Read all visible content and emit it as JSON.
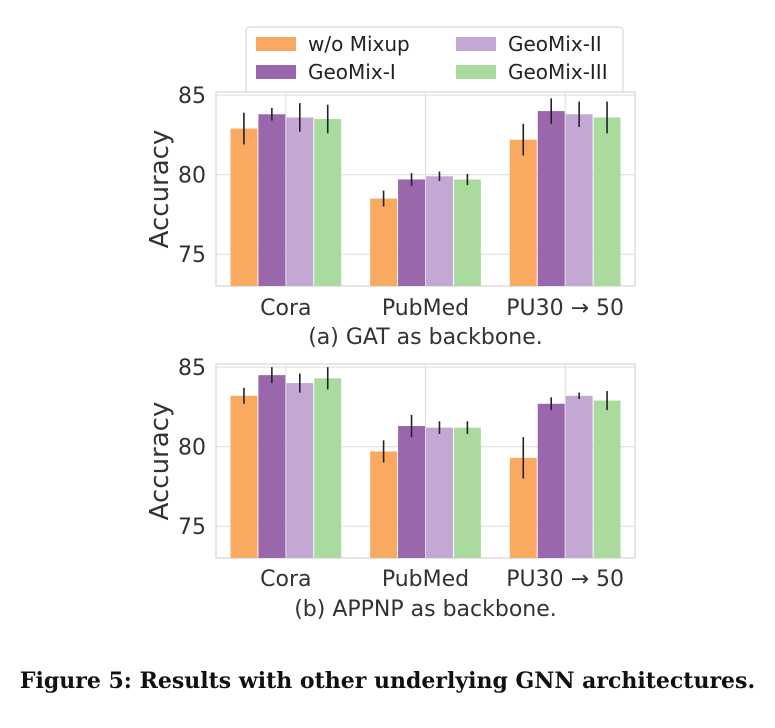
{
  "legend": {
    "position": "top-center",
    "entries": [
      {
        "label": "w/o Mixup",
        "color": "#FAA961"
      },
      {
        "label": "GeoMix-I",
        "color": "#9A66AC"
      },
      {
        "label": "GeoMix-II",
        "color": "#C3A8D6"
      },
      {
        "label": "GeoMix-III",
        "color": "#A9DB9E"
      }
    ]
  },
  "chart_data": [
    {
      "type": "bar",
      "caption": "(a) GAT as backbone.",
      "ylabel": "Accuracy",
      "ylim": [
        73,
        85.2
      ],
      "yticks": [
        75,
        80,
        85
      ],
      "grid": true,
      "categories": [
        "Cora",
        "PubMed",
        "PU30 → 50"
      ],
      "series": [
        {
          "name": "w/o Mixup",
          "values": [
            82.9,
            78.5,
            82.2
          ],
          "errors": [
            1.0,
            0.5,
            1.0
          ]
        },
        {
          "name": "GeoMix-I",
          "values": [
            83.8,
            79.7,
            84.0
          ],
          "errors": [
            0.4,
            0.4,
            0.8
          ]
        },
        {
          "name": "GeoMix-II",
          "values": [
            83.6,
            79.9,
            83.8
          ],
          "errors": [
            0.9,
            0.3,
            0.8
          ]
        },
        {
          "name": "GeoMix-III",
          "values": [
            83.5,
            79.7,
            83.6
          ],
          "errors": [
            0.9,
            0.35,
            1.0
          ]
        }
      ]
    },
    {
      "type": "bar",
      "caption": "(b) APPNP as backbone.",
      "ylabel": "Accuracy",
      "ylim": [
        73,
        85.2
      ],
      "yticks": [
        75,
        80,
        85
      ],
      "grid": true,
      "categories": [
        "Cora",
        "PubMed",
        "PU30 → 50"
      ],
      "series": [
        {
          "name": "w/o Mixup",
          "values": [
            83.2,
            79.7,
            79.3
          ],
          "errors": [
            0.5,
            0.7,
            1.3
          ]
        },
        {
          "name": "GeoMix-I",
          "values": [
            84.5,
            81.3,
            82.7
          ],
          "errors": [
            0.5,
            0.7,
            0.4
          ]
        },
        {
          "name": "GeoMix-II",
          "values": [
            84.0,
            81.2,
            83.2
          ],
          "errors": [
            0.6,
            0.4,
            0.2
          ]
        },
        {
          "name": "GeoMix-III",
          "values": [
            84.3,
            81.2,
            82.9
          ],
          "errors": [
            0.7,
            0.4,
            0.6
          ]
        }
      ]
    }
  ],
  "figure_caption": "Figure 5: Results with other underlying GNN architectures."
}
